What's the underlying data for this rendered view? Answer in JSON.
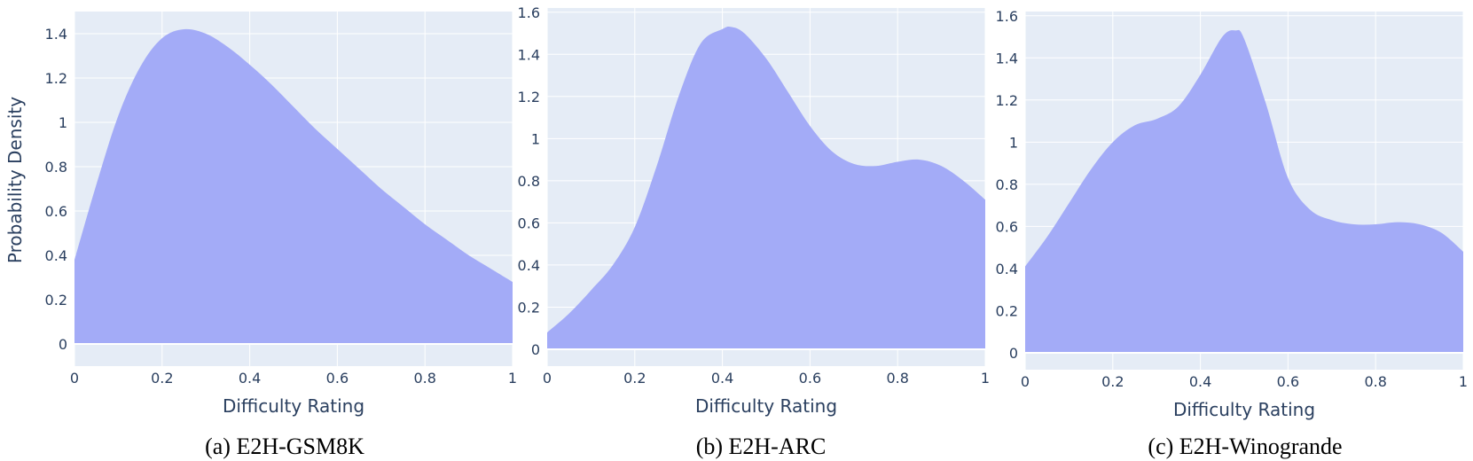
{
  "colors": {
    "plot_bg": "#e5ecf6",
    "fill": "#a3abf7",
    "grid": "#ffffff",
    "text": "#2a3f5f"
  },
  "chart_data": [
    {
      "type": "area",
      "caption": "(a) E2H-GSM8K",
      "xlabel": "Difficulty Rating",
      "ylabel": "Probability Density",
      "xlim": [
        0,
        1
      ],
      "ylim": [
        -0.1,
        1.5
      ],
      "xticks": [
        0,
        0.2,
        0.4,
        0.6,
        0.8,
        1
      ],
      "xtick_labels": [
        "0",
        "0.2",
        "0.4",
        "0.6",
        "0.8",
        "1"
      ],
      "yticks": [
        0,
        0.2,
        0.4,
        0.6,
        0.8,
        1,
        1.2,
        1.4
      ],
      "ytick_labels": [
        "0",
        "0.2",
        "0.4",
        "0.6",
        "0.8",
        "1",
        "1.2",
        "1.4"
      ],
      "grid": true,
      "x": [
        0,
        0.05,
        0.1,
        0.15,
        0.2,
        0.25,
        0.3,
        0.35,
        0.4,
        0.45,
        0.5,
        0.55,
        0.6,
        0.65,
        0.7,
        0.75,
        0.8,
        0.85,
        0.9,
        0.95,
        1
      ],
      "y": [
        0.38,
        0.72,
        1.03,
        1.25,
        1.38,
        1.42,
        1.4,
        1.34,
        1.26,
        1.17,
        1.07,
        0.97,
        0.88,
        0.79,
        0.7,
        0.62,
        0.54,
        0.47,
        0.4,
        0.34,
        0.28
      ]
    },
    {
      "type": "area",
      "caption": "(b) E2H-ARC",
      "xlabel": "Difficulty Rating",
      "ylabel": "",
      "xlim": [
        0,
        1
      ],
      "ylim": [
        -0.08,
        1.62
      ],
      "xticks": [
        0,
        0.2,
        0.4,
        0.6,
        0.8,
        1
      ],
      "xtick_labels": [
        "0",
        "0.2",
        "0.4",
        "0.6",
        "0.8",
        "1"
      ],
      "yticks": [
        0,
        0.2,
        0.4,
        0.6,
        0.8,
        1,
        1.2,
        1.4,
        1.6
      ],
      "ytick_labels": [
        "0",
        "0.2",
        "0.4",
        "0.6",
        "0.8",
        "1",
        "1.2",
        "1.4",
        "1.6"
      ],
      "grid": true,
      "x": [
        0,
        0.05,
        0.1,
        0.15,
        0.2,
        0.25,
        0.3,
        0.35,
        0.4,
        0.42,
        0.45,
        0.5,
        0.55,
        0.6,
        0.65,
        0.7,
        0.75,
        0.8,
        0.85,
        0.9,
        0.95,
        1
      ],
      "y": [
        0.08,
        0.17,
        0.28,
        0.4,
        0.58,
        0.87,
        1.2,
        1.45,
        1.52,
        1.53,
        1.5,
        1.38,
        1.22,
        1.06,
        0.94,
        0.88,
        0.87,
        0.89,
        0.9,
        0.87,
        0.8,
        0.71
      ]
    },
    {
      "type": "area",
      "caption": "(c) E2H-Winogrande",
      "xlabel": "Difficulty Rating",
      "ylabel": "",
      "xlim": [
        0,
        1
      ],
      "ylim": [
        -0.08,
        1.62
      ],
      "xticks": [
        0,
        0.2,
        0.4,
        0.6,
        0.8,
        1
      ],
      "xtick_labels": [
        "0",
        "0.2",
        "0.4",
        "0.6",
        "0.8",
        "1"
      ],
      "yticks": [
        0,
        0.2,
        0.4,
        0.6,
        0.8,
        1,
        1.2,
        1.4,
        1.6
      ],
      "ytick_labels": [
        "0",
        "0.2",
        "0.4",
        "0.6",
        "0.8",
        "1",
        "1.2",
        "1.4",
        "1.6"
      ],
      "grid": true,
      "x": [
        0,
        0.05,
        0.1,
        0.15,
        0.2,
        0.25,
        0.3,
        0.35,
        0.4,
        0.45,
        0.48,
        0.5,
        0.55,
        0.6,
        0.65,
        0.7,
        0.75,
        0.8,
        0.85,
        0.9,
        0.95,
        1
      ],
      "y": [
        0.41,
        0.55,
        0.71,
        0.87,
        1.0,
        1.08,
        1.11,
        1.17,
        1.32,
        1.5,
        1.53,
        1.49,
        1.18,
        0.83,
        0.68,
        0.63,
        0.61,
        0.61,
        0.62,
        0.61,
        0.57,
        0.48
      ]
    }
  ]
}
